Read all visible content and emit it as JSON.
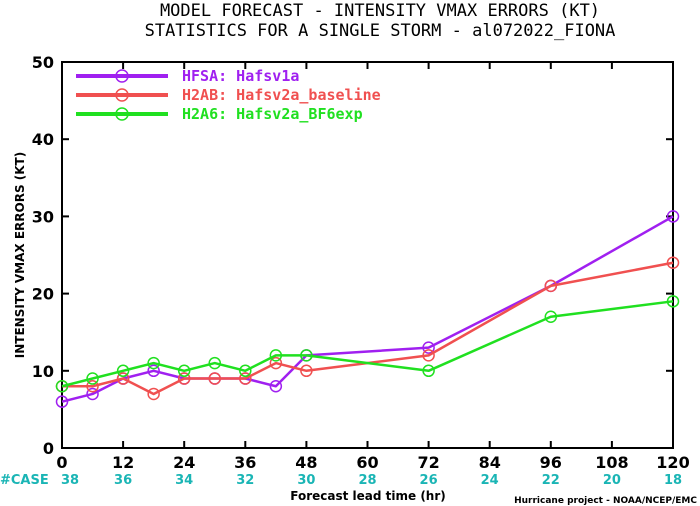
{
  "chart_data": {
    "type": "line",
    "title": "MODEL FORECAST - INTENSITY VMAX ERRORS (KT)",
    "subtitle": "STATISTICS FOR A SINGLE STORM - al072022_FIONA",
    "xlabel": "Forecast lead time (hr)",
    "ylabel": "INTENSITY VMAX ERRORS (KT)",
    "xlim": [
      0,
      120
    ],
    "ylim": [
      0,
      50
    ],
    "xticks": [
      0,
      12,
      24,
      36,
      48,
      60,
      72,
      84,
      96,
      108,
      120
    ],
    "yticks": [
      0,
      10,
      20,
      30,
      40,
      50
    ],
    "legend_position": "top-left",
    "grid": false,
    "case_label": "#CASE",
    "case_counts": [
      {
        "x": 0,
        "n": "38"
      },
      {
        "x": 12,
        "n": "36"
      },
      {
        "x": 24,
        "n": "34"
      },
      {
        "x": 36,
        "n": "32"
      },
      {
        "x": 48,
        "n": "30"
      },
      {
        "x": 60,
        "n": "28"
      },
      {
        "x": 72,
        "n": "26"
      },
      {
        "x": 84,
        "n": "24"
      },
      {
        "x": 96,
        "n": "22"
      },
      {
        "x": 108,
        "n": "20"
      },
      {
        "x": 120,
        "n": "18"
      }
    ],
    "series": [
      {
        "name": "HFSA: Hafsv1a",
        "color": "#a020f0",
        "x": [
          0,
          6,
          12,
          18,
          24,
          30,
          36,
          42,
          48,
          72,
          96,
          120
        ],
        "y": [
          6,
          7,
          9,
          10,
          9,
          9,
          9,
          8,
          12,
          13,
          21,
          30
        ]
      },
      {
        "name": "H2AB: Hafsv2a_baseline",
        "color": "#f05050",
        "x": [
          0,
          6,
          12,
          18,
          24,
          30,
          36,
          42,
          48,
          72,
          96,
          120
        ],
        "y": [
          8,
          8,
          9,
          7,
          9,
          9,
          9,
          11,
          10,
          12,
          21,
          24
        ]
      },
      {
        "name": "H2A6: Hafsv2a_BF6exp",
        "color": "#20e020",
        "x": [
          0,
          6,
          12,
          18,
          24,
          30,
          36,
          42,
          48,
          72,
          96,
          120
        ],
        "y": [
          8,
          9,
          10,
          11,
          10,
          11,
          10,
          12,
          12,
          10,
          17,
          19
        ]
      }
    ],
    "credit": "Hurricane project - NOAA/NCEP/EMC"
  }
}
